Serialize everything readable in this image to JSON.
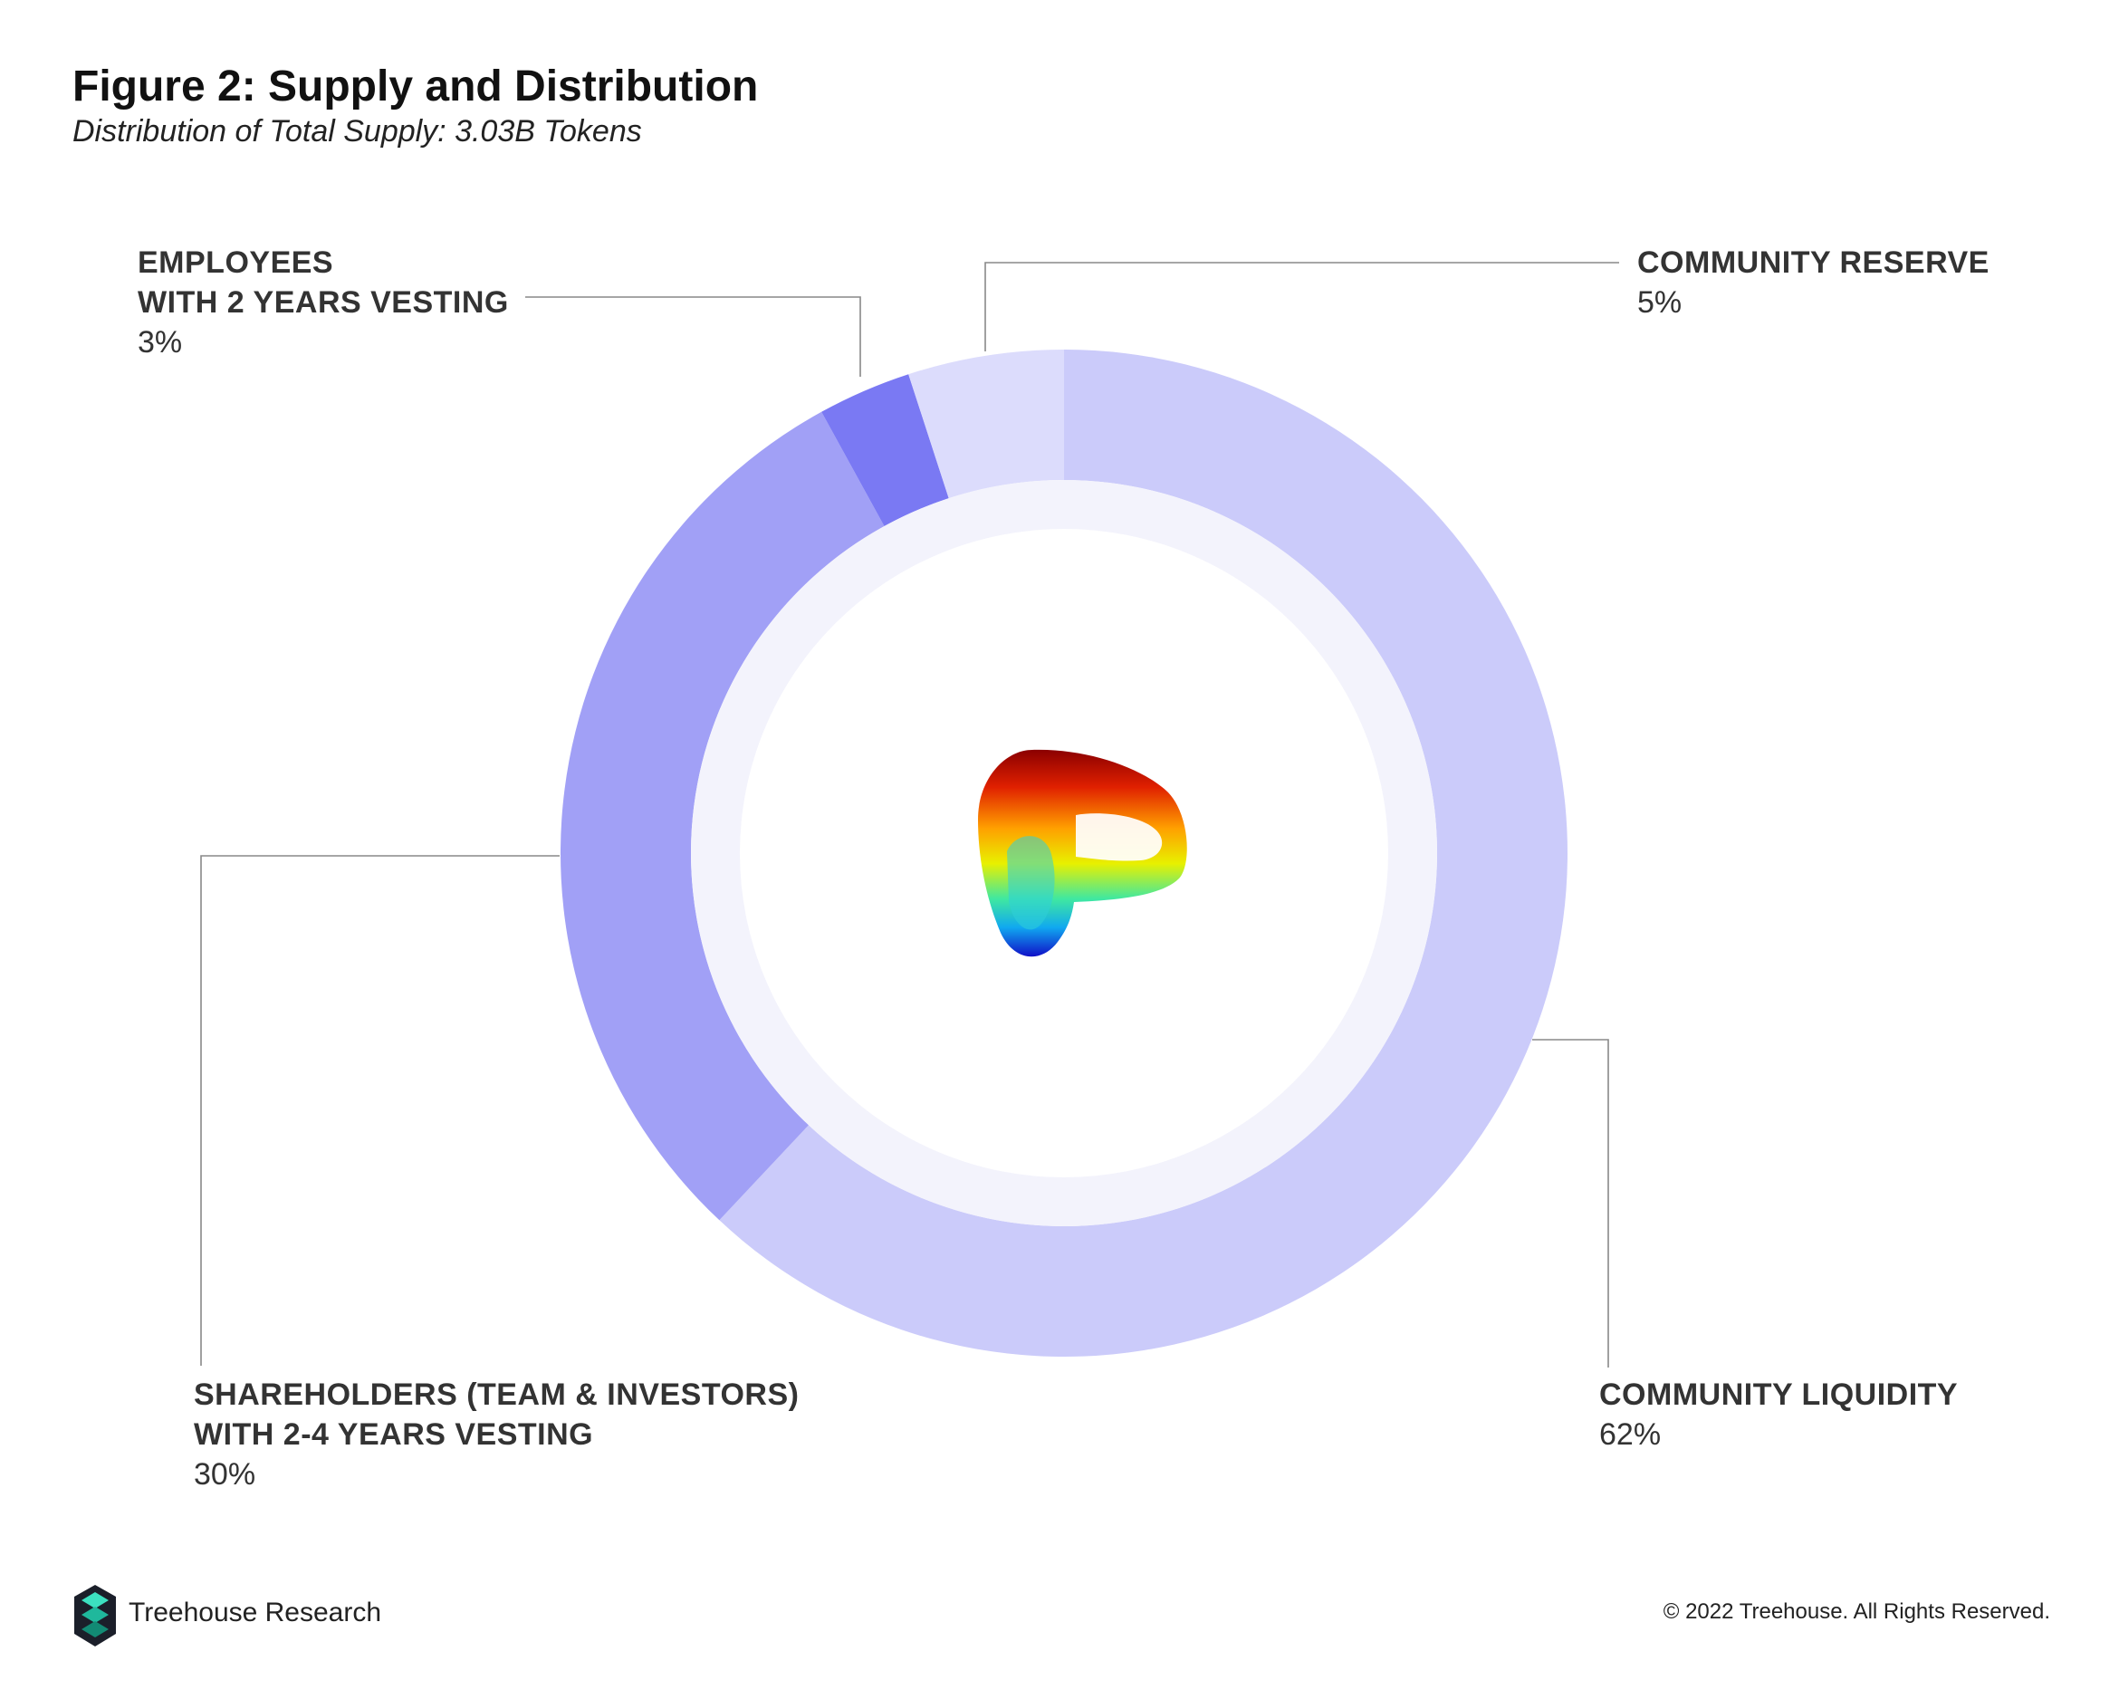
{
  "header": {
    "title": "Figure 2: Supply and Distribution",
    "subtitle": "Distribution of Total Supply: 3.03B Tokens"
  },
  "chart_data": {
    "type": "pie",
    "variant": "donut",
    "title": "Figure 2: Supply and Distribution",
    "subtitle": "Distribution of Total Supply: 3.03B Tokens",
    "center_icon": "curve-logo-icon",
    "slices": [
      {
        "label_lines": [
          "COMMUNITY LIQUIDITY"
        ],
        "value": 62,
        "value_label": "62%",
        "color": "#cbcbfa"
      },
      {
        "label_lines": [
          "SHAREHOLDERS (TEAM & INVESTORS)",
          "WITH 2-4 YEARS VESTING"
        ],
        "value": 30,
        "value_label": "30%",
        "color": "#a1a0f6"
      },
      {
        "label_lines": [
          "EMPLOYEES",
          "WITH 2 YEARS VESTING"
        ],
        "value": 3,
        "value_label": "3%",
        "color": "#7a79f3"
      },
      {
        "label_lines": [
          "COMMUNITY RESERVE"
        ],
        "value": 5,
        "value_label": "5%",
        "color": "#dcdcfc"
      }
    ],
    "inner_ring_color": "#f3f3fc",
    "leader_line_color": "#888888"
  },
  "footer": {
    "brand": "Treehouse Research",
    "copyright": "© 2022 Treehouse. All Rights Reserved."
  }
}
